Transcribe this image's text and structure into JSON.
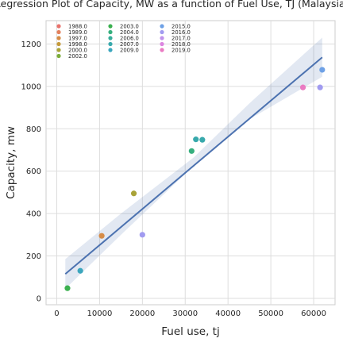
{
  "chart_data": {
    "type": "scatter",
    "title": "Regression Plot of Capacity, MW as a function of Fuel Use, TJ (Malaysia)",
    "xlabel": "Fuel use, tj",
    "ylabel": "Capacity, mw",
    "xlim": [
      -2500,
      65000
    ],
    "ylim": [
      -30,
      1310
    ],
    "xticks": [
      0,
      10000,
      20000,
      30000,
      40000,
      50000,
      60000
    ],
    "yticks": [
      0,
      200,
      400,
      600,
      800,
      1000,
      1200
    ],
    "grid": true,
    "legend": {
      "placement": "top-left",
      "columns": 3
    },
    "series": [
      {
        "name": "1988.0",
        "color": "#e8736d",
        "points": []
      },
      {
        "name": "1989.0",
        "color": "#e3815e",
        "points": []
      },
      {
        "name": "1997.0",
        "color": "#d68c47",
        "points": [
          [
            10500,
            295
          ]
        ]
      },
      {
        "name": "1998.0",
        "color": "#c59a3c",
        "points": []
      },
      {
        "name": "2000.0",
        "color": "#a9a338",
        "points": [
          [
            18000,
            495
          ]
        ]
      },
      {
        "name": "2002.0",
        "color": "#7cad3a",
        "points": []
      },
      {
        "name": "2003.0",
        "color": "#3bb04f",
        "points": [
          [
            2500,
            48
          ]
        ]
      },
      {
        "name": "2004.0",
        "color": "#36af7e",
        "points": [
          [
            31500,
            695
          ]
        ]
      },
      {
        "name": "2006.0",
        "color": "#37ad9a",
        "points": []
      },
      {
        "name": "2007.0",
        "color": "#38a9ac",
        "points": [
          [
            32500,
            750
          ],
          [
            34000,
            748
          ]
        ]
      },
      {
        "name": "2009.0",
        "color": "#3ba6bd",
        "points": [
          [
            5500,
            130
          ]
        ]
      },
      {
        "name": "2015.0",
        "color": "#6ea1e6",
        "points": [
          [
            62000,
            1078
          ]
        ]
      },
      {
        "name": "2016.0",
        "color": "#a19bf0",
        "points": [
          [
            20000,
            300
          ],
          [
            61500,
            995
          ]
        ]
      },
      {
        "name": "2017.0",
        "color": "#c193ec",
        "points": []
      },
      {
        "name": "2018.0",
        "color": "#dc85e0",
        "points": []
      },
      {
        "name": "2019.0",
        "color": "#ea7ac2",
        "points": [
          [
            57500,
            995
          ]
        ]
      }
    ],
    "regression": {
      "color": "#4c72b0",
      "line": [
        [
          2000,
          115
        ],
        [
          62000,
          1137
        ]
      ],
      "ci_band": [
        [
          2000,
          45,
          185
        ],
        [
          15000,
          300,
          400
        ],
        [
          32000,
          625,
          665
        ],
        [
          45000,
          845,
          920
        ],
        [
          62000,
          1045,
          1230
        ]
      ]
    }
  }
}
